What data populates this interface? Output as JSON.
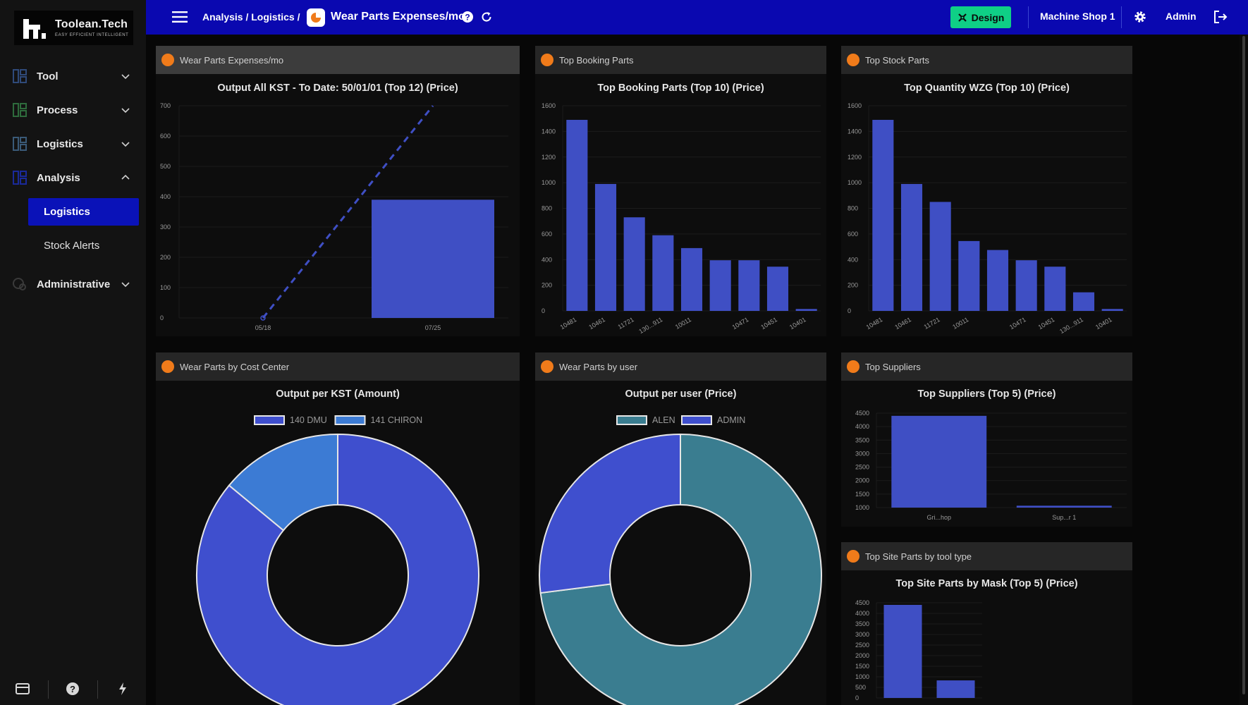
{
  "app": {
    "logo_title": "Toolean.Tech",
    "logo_subtitle": "EASY EFFICIENT INTELLIGENT"
  },
  "topbar": {
    "breadcrumb": "Analysis / Logistics /",
    "page_title": "Wear Parts Expenses/mo",
    "design_label": "Design",
    "shop_label": "Machine Shop 1",
    "user_label": "Admin",
    "accent": "#0a08b0"
  },
  "sidebar": {
    "items": [
      {
        "label": "Tool",
        "expanded": false
      },
      {
        "label": "Process",
        "expanded": false
      },
      {
        "label": "Logistics",
        "expanded": false
      },
      {
        "label": "Analysis",
        "expanded": true
      },
      {
        "label": "Administrative",
        "expanded": false
      }
    ],
    "sub_items": [
      {
        "label": "Logistics",
        "active": true
      },
      {
        "label": "Stock Alerts",
        "active": false
      }
    ]
  },
  "panels": {
    "p1": {
      "header": "Wear Parts Expenses/mo"
    },
    "p2": {
      "header": "Top Booking Parts"
    },
    "p3": {
      "header": "Top Stock Parts"
    },
    "p4": {
      "header": "Wear Parts by Cost Center"
    },
    "p5": {
      "header": "Wear Parts by user"
    },
    "p6": {
      "header": "Top Suppliers"
    },
    "p7": {
      "header": "Top Site Parts by tool type"
    }
  },
  "chart_data": [
    {
      "id": "c1",
      "type": "bar",
      "title": "Output All KST - To Date: 50/01/01 (Top 12) (Price)",
      "categories": [
        "05/18",
        "07/25"
      ],
      "series": [
        {
          "name": "bar",
          "values": [
            0,
            390
          ],
          "color": "#3f4fc4"
        },
        {
          "name": "trend",
          "type": "line",
          "dashed": true,
          "values": [
            0,
            700
          ],
          "color": "#3f4fc4"
        }
      ],
      "yticks": [
        0,
        100,
        200,
        300,
        400,
        500,
        600,
        700
      ],
      "ylim": [
        0,
        700
      ]
    },
    {
      "id": "c2",
      "type": "bar",
      "title": "Top Booking Parts (Top 10) (Price)",
      "categories": [
        "10481",
        "10461",
        "11721",
        "130...911",
        "10011",
        "",
        "10471",
        "10451",
        "10401"
      ],
      "values": [
        1490,
        990,
        730,
        590,
        490,
        395,
        395,
        345,
        15
      ],
      "yticks": [
        0,
        200,
        400,
        600,
        800,
        1000,
        1200,
        1400,
        1600
      ],
      "ylim": [
        0,
        1600
      ]
    },
    {
      "id": "c3",
      "type": "bar",
      "title": "Top Quantity WZG (Top 10) (Price)",
      "categories": [
        "10481",
        "10461",
        "11721",
        "10011",
        "",
        "10471",
        "10451",
        "130...911",
        "10401"
      ],
      "values": [
        1490,
        990,
        850,
        545,
        475,
        395,
        345,
        145,
        15
      ],
      "yticks": [
        0,
        200,
        400,
        600,
        800,
        1000,
        1200,
        1400,
        1600
      ],
      "ylim": [
        0,
        1600
      ]
    },
    {
      "id": "c4",
      "type": "pie",
      "title": "Output per KST (Amount)",
      "labels": [
        "140 DMU",
        "141 CHIRON"
      ],
      "values": [
        86,
        14
      ],
      "colors": [
        "#3f4fce",
        "#3c7bd4"
      ]
    },
    {
      "id": "c5",
      "type": "pie",
      "title": "Output per user (Price)",
      "labels": [
        "ALEN",
        "ADMIN"
      ],
      "values": [
        73,
        27
      ],
      "colors": [
        "#3a7d90",
        "#3f4fce"
      ]
    },
    {
      "id": "c6",
      "type": "bar",
      "title": "Top Suppliers (Top 5) (Price)",
      "categories": [
        "Gri...hop",
        "Sup...r 1"
      ],
      "values": [
        4400,
        1070
      ],
      "yticks": [
        1000,
        1500,
        2000,
        2500,
        3000,
        3500,
        4000,
        4500
      ],
      "ylim": [
        1000,
        4500
      ]
    },
    {
      "id": "c7",
      "type": "bar",
      "title": "Top Site Parts by Mask (Top 5) (Price)",
      "categories": [
        "",
        ""
      ],
      "values": [
        4400,
        830
      ],
      "yticks": [
        0,
        500,
        1000,
        1500,
        2000,
        2500,
        3000,
        3500,
        4000,
        4500
      ],
      "ylim": [
        0,
        4500
      ]
    }
  ]
}
